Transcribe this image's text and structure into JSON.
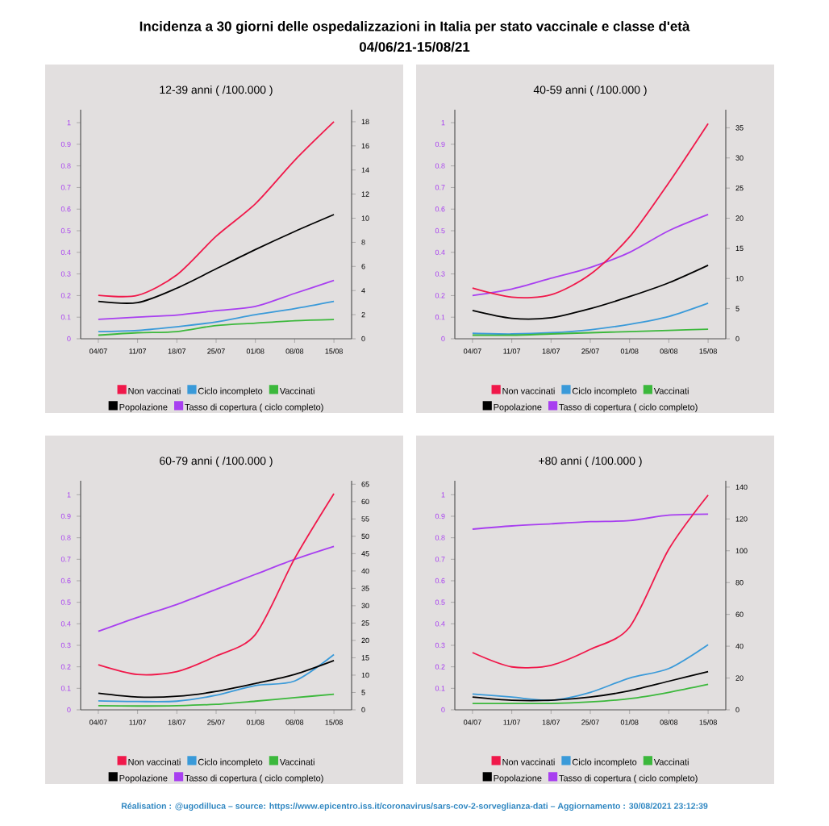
{
  "chart_data": [
    {
      "type": "line",
      "title": "12-39 anni ( /100.000 )",
      "annotations": [
        "Incidenza a 30 giorni delle ospedalizzazioni in Italia per stato vaccinale e classe d'età",
        "04/06/21-15/08/21"
      ],
      "categories": [
        "04/07",
        "11/07",
        "18/07",
        "25/07",
        "01/08",
        "08/08",
        "15/08"
      ],
      "legend": "bottom",
      "ylim": [
        0,
        1.06
      ],
      "yticks": [
        0,
        0.1,
        0.2,
        0.3,
        0.4,
        0.5,
        0.6,
        0.7,
        0.8,
        0.9,
        1
      ],
      "y2lim": [
        0,
        19
      ],
      "y2ticks": [
        0,
        2,
        4,
        6,
        8,
        10,
        12,
        14,
        16,
        18
      ],
      "series": [
        {
          "name": "Non vaccinati",
          "color": "#f0184a",
          "axis": "y2",
          "values": [
            3.6,
            3.6,
            5.3,
            8.5,
            11.2,
            14.8,
            18
          ]
        },
        {
          "name": "Ciclo incompleto",
          "color": "#3a9ad9",
          "axis": "y2",
          "values": [
            0.6,
            0.7,
            1.0,
            1.4,
            2.0,
            2.5,
            3.1
          ]
        },
        {
          "name": "Vaccinati",
          "color": "#3cb83c",
          "axis": "y2",
          "values": [
            0.3,
            0.5,
            0.6,
            1.1,
            1.3,
            1.5,
            1.6
          ]
        },
        {
          "name": "Popolazione",
          "color": "#000000",
          "axis": "y2",
          "values": [
            3.1,
            3.0,
            4.2,
            5.8,
            7.4,
            8.9,
            10.3
          ]
        },
        {
          "name": "Tasso di copertura ( ciclo completo)",
          "color": "#a83ff0",
          "axis": "y",
          "values": [
            0.09,
            0.1,
            0.11,
            0.13,
            0.15,
            0.21,
            0.27
          ]
        }
      ]
    },
    {
      "type": "line",
      "title": "40-59 anni ( /100.000 )",
      "categories": [
        "04/07",
        "11/07",
        "18/07",
        "25/07",
        "01/08",
        "08/08",
        "15/08"
      ],
      "legend": "bottom",
      "ylim": [
        0,
        1.06
      ],
      "yticks": [
        0,
        0.1,
        0.2,
        0.3,
        0.4,
        0.5,
        0.6,
        0.7,
        0.8,
        0.9,
        1
      ],
      "y2lim": [
        0,
        38
      ],
      "y2ticks": [
        0,
        5,
        10,
        15,
        20,
        25,
        30,
        35
      ],
      "series": [
        {
          "name": "Non vaccinati",
          "color": "#f0184a",
          "axis": "y2",
          "values": [
            8.4,
            6.9,
            7.3,
            10.7,
            16.9,
            25.9,
            35.7
          ]
        },
        {
          "name": "Ciclo incompleto",
          "color": "#3a9ad9",
          "axis": "y2",
          "values": [
            0.9,
            0.8,
            1.0,
            1.5,
            2.4,
            3.7,
            5.9
          ]
        },
        {
          "name": "Vaccinati",
          "color": "#3cb83c",
          "axis": "y2",
          "values": [
            0.6,
            0.6,
            0.8,
            1.0,
            1.2,
            1.4,
            1.6
          ]
        },
        {
          "name": "Popolazione",
          "color": "#000000",
          "axis": "y2",
          "values": [
            4.7,
            3.4,
            3.5,
            5.0,
            7.0,
            9.3,
            12.2
          ]
        },
        {
          "name": "Tasso di copertura ( ciclo completo)",
          "color": "#a83ff0",
          "axis": "y",
          "values": [
            0.2,
            0.23,
            0.28,
            0.33,
            0.4,
            0.5,
            0.575
          ]
        }
      ]
    },
    {
      "type": "line",
      "title": "60-79 anni ( /100.000 )",
      "categories": [
        "04/07",
        "11/07",
        "18/07",
        "25/07",
        "01/08",
        "08/08",
        "15/08"
      ],
      "legend": "bottom",
      "ylim": [
        0,
        1.065
      ],
      "yticks": [
        0,
        0.1,
        0.2,
        0.3,
        0.4,
        0.5,
        0.6,
        0.7,
        0.8,
        0.9,
        1
      ],
      "y2lim": [
        0,
        66
      ],
      "y2ticks": [
        0,
        5,
        10,
        15,
        20,
        25,
        30,
        35,
        40,
        45,
        50,
        55,
        60,
        65
      ],
      "series": [
        {
          "name": "Non vaccinati",
          "color": "#f0184a",
          "axis": "y2",
          "values": [
            13,
            10.2,
            11,
            15.5,
            21.7,
            43.6,
            62.3
          ]
        },
        {
          "name": "Ciclo incompleto",
          "color": "#3a9ad9",
          "axis": "y2",
          "values": [
            2.6,
            2.4,
            2.5,
            4.2,
            7.0,
            8.3,
            15.9
          ]
        },
        {
          "name": "Vaccinati",
          "color": "#3cb83c",
          "axis": "y2",
          "values": [
            1.2,
            1.1,
            1.2,
            1.6,
            2.5,
            3.5,
            4.5
          ]
        },
        {
          "name": "Popolazione",
          "color": "#000000",
          "axis": "y2",
          "values": [
            4.8,
            3.7,
            3.9,
            5.3,
            7.6,
            10.2,
            14.2
          ]
        },
        {
          "name": "Tasso di copertura ( ciclo completo)",
          "color": "#a83ff0",
          "axis": "y",
          "values": [
            0.365,
            0.43,
            0.49,
            0.56,
            0.63,
            0.7,
            0.76
          ]
        }
      ]
    },
    {
      "type": "line",
      "title": "+80 anni ( /100.000 )",
      "annotations": [
        "Réalisation : @ugodilluca – source: https://www.epicentro.iss.it/coronavirus/sars-cov-2-sorveglianza-dati – Aggiornamento : 30/08/2021 23:12:39"
      ],
      "categories": [
        "04/07",
        "11/07",
        "18/07",
        "25/07",
        "01/08",
        "08/08",
        "15/08"
      ],
      "legend": "bottom",
      "ylim": [
        0,
        1.065
      ],
      "yticks": [
        0,
        0.1,
        0.2,
        0.3,
        0.4,
        0.5,
        0.6,
        0.7,
        0.8,
        0.9,
        1
      ],
      "y2lim": [
        0,
        144
      ],
      "y2ticks": [
        0,
        20,
        40,
        60,
        80,
        100,
        120,
        140
      ],
      "series": [
        {
          "name": "Non vaccinati",
          "color": "#f0184a",
          "axis": "y2",
          "values": [
            36,
            27,
            28,
            38,
            52,
            101,
            135
          ]
        },
        {
          "name": "Ciclo incompleto",
          "color": "#3a9ad9",
          "axis": "y2",
          "values": [
            10,
            8,
            6,
            11,
            20,
            26,
            41
          ]
        },
        {
          "name": "Vaccinati",
          "color": "#3cb83c",
          "axis": "y2",
          "values": [
            4,
            4,
            4,
            5,
            7,
            11,
            16
          ]
        },
        {
          "name": "Popolazione",
          "color": "#000000",
          "axis": "y2",
          "values": [
            8,
            6,
            6,
            8,
            12,
            18,
            24
          ]
        },
        {
          "name": "Tasso di copertura ( ciclo completo)",
          "color": "#a83ff0",
          "axis": "y",
          "values": [
            0.84,
            0.855,
            0.865,
            0.875,
            0.88,
            0.905,
            0.91
          ]
        }
      ]
    }
  ]
}
